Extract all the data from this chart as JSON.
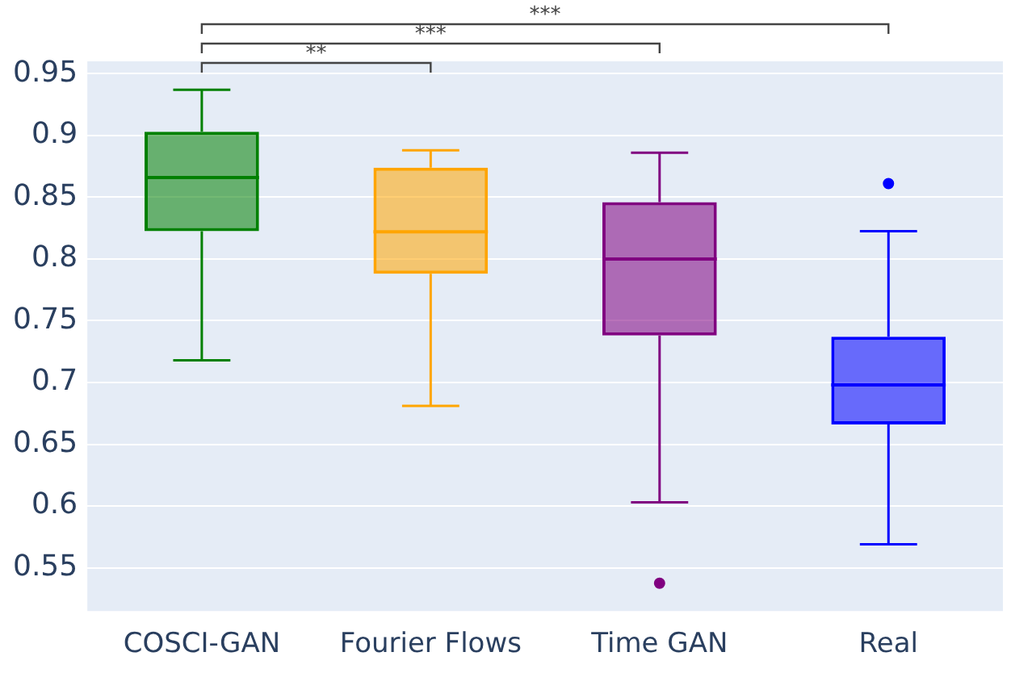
{
  "chart_data": {
    "type": "box",
    "categories": [
      "COSCI-GAN",
      "Fourier Flows",
      "Time GAN",
      "Real"
    ],
    "boxes": [
      {
        "low": 0.718,
        "q1": 0.8225,
        "median": 0.866,
        "q3": 0.903,
        "high": 0.937
      },
      {
        "low": 0.681,
        "q1": 0.788,
        "median": 0.822,
        "q3": 0.874,
        "high": 0.888
      },
      {
        "low": 0.603,
        "q1": 0.738,
        "median": 0.8,
        "q3": 0.846,
        "high": 0.886,
        "outliers": [
          0.5375
        ]
      },
      {
        "low": 0.569,
        "q1": 0.666,
        "median": 0.698,
        "q3": 0.737,
        "high": 0.8225,
        "outliers": [
          0.861
        ]
      }
    ],
    "colors": [
      "#008000",
      "#ffa500",
      "#800080",
      "#0000ff"
    ],
    "ylim": [
      0.515,
      0.96
    ],
    "yticks": [
      0.55,
      0.6,
      0.65,
      0.7,
      0.75,
      0.8,
      0.85,
      0.9,
      0.95
    ],
    "grid": "y",
    "legend": false,
    "annotations": [
      "**",
      "***",
      "***"
    ]
  }
}
